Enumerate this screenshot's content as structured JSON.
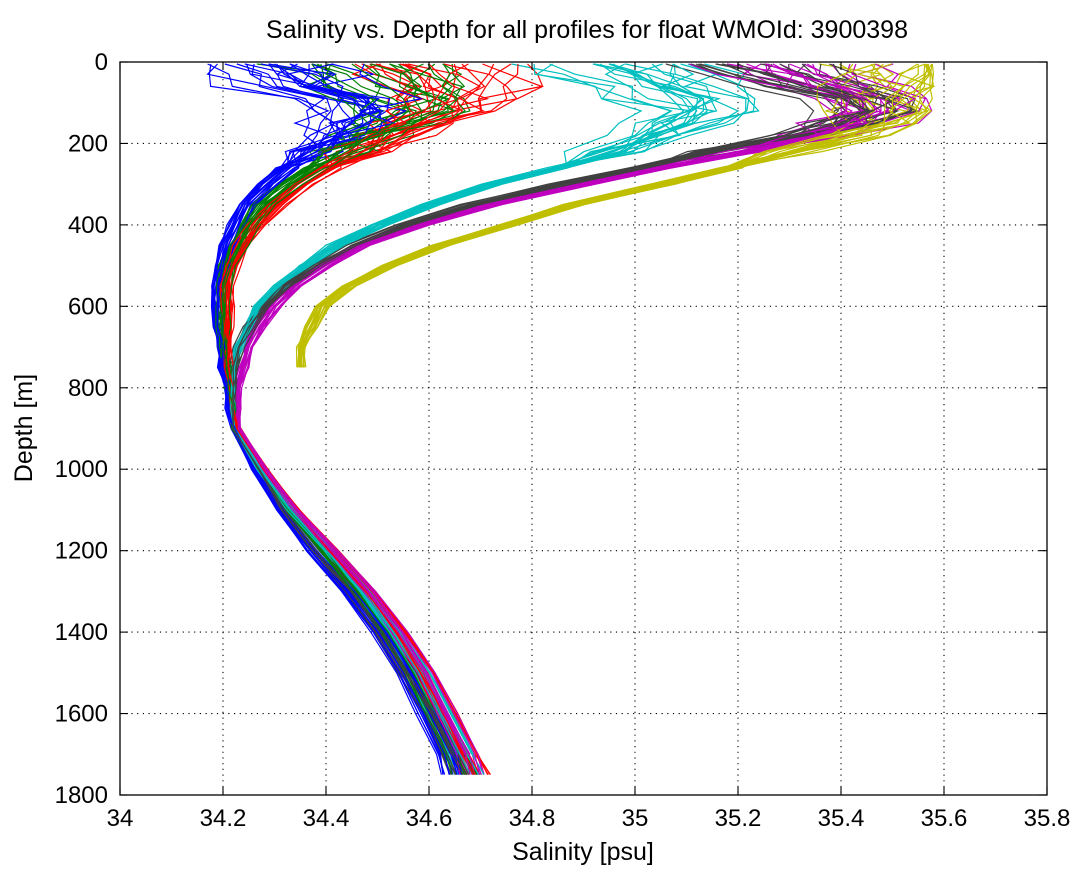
{
  "chart_data": {
    "type": "line",
    "title": "Salinity vs. Depth for all profiles for float WMOId: 3900398",
    "xlabel": "Salinity [psu]",
    "ylabel": "Depth [m]",
    "xlim": [
      34,
      35.8
    ],
    "ylim": [
      0,
      1800
    ],
    "y_reversed": true,
    "grid": true,
    "grid_style": "dotted",
    "xticks": [
      34,
      34.2,
      34.4,
      34.6,
      34.8,
      35,
      35.2,
      35.4,
      35.6,
      35.8
    ],
    "xtick_labels": [
      "34",
      "34.2",
      "34.4",
      "34.6",
      "34.8",
      "35",
      "35.2",
      "35.4",
      "35.6",
      "35.8"
    ],
    "yticks": [
      0,
      200,
      400,
      600,
      800,
      1000,
      1200,
      1400,
      1600,
      1800
    ],
    "ytick_labels": [
      "0",
      "200",
      "400",
      "600",
      "800",
      "1000",
      "1200",
      "1400",
      "1600",
      "1800"
    ],
    "series_colors": [
      "#0000ff",
      "#008000",
      "#ff0000",
      "#00bfbf",
      "#bf00bf",
      "#bfbf00",
      "#404040"
    ],
    "profile_count": 140,
    "depth_levels": [
      5,
      30,
      60,
      90,
      120,
      150,
      180,
      220,
      260,
      300,
      350,
      400,
      450,
      500,
      550,
      600,
      650,
      700,
      750,
      800,
      850,
      900,
      1000,
      1100,
      1200,
      1300,
      1400,
      1500,
      1600,
      1700,
      1750
    ],
    "series": [
      {
        "salinity": [
          34.3,
          34.33,
          34.36,
          34.45,
          34.47,
          34.45,
          34.42,
          34.38,
          34.33,
          34.29,
          34.25,
          34.23,
          34.21,
          34.2,
          34.19,
          34.19,
          34.19,
          34.2,
          34.2,
          34.21,
          34.21,
          34.22,
          34.26,
          34.31,
          34.37,
          34.44,
          34.5,
          34.55,
          34.59,
          34.63,
          34.64
        ]
      },
      {
        "salinity": [
          34.45,
          34.48,
          34.52,
          34.55,
          34.56,
          34.53,
          34.49,
          34.44,
          34.38,
          34.33,
          34.28,
          34.25,
          34.23,
          34.21,
          34.2,
          34.2,
          34.2,
          34.2,
          34.21,
          34.21,
          34.22,
          34.22,
          34.27,
          34.33,
          34.4,
          34.46,
          34.52,
          34.57,
          34.61,
          34.65,
          34.67
        ]
      },
      {
        "salinity": [
          34.6,
          34.62,
          34.65,
          34.64,
          34.62,
          34.58,
          34.53,
          34.47,
          34.41,
          34.36,
          34.31,
          34.27,
          34.24,
          34.22,
          34.21,
          34.21,
          34.21,
          34.21,
          34.21,
          34.22,
          34.22,
          34.23,
          34.28,
          34.34,
          34.41,
          34.48,
          34.54,
          34.59,
          34.63,
          34.67,
          34.69
        ]
      },
      {
        "salinity": [
          34.95,
          35.0,
          35.05,
          35.1,
          35.12,
          35.1,
          35.05,
          34.95,
          34.85,
          34.72,
          34.6,
          34.5,
          34.42,
          34.36,
          34.31,
          34.27,
          34.25,
          34.23,
          34.22,
          34.22,
          34.22,
          34.22,
          34.27,
          34.33,
          34.4,
          34.47,
          34.53,
          34.58,
          34.62,
          34.66,
          34.68
        ]
      },
      {
        "salinity": [
          35.3,
          35.35,
          35.4,
          35.45,
          35.47,
          35.43,
          35.35,
          35.22,
          35.05,
          34.9,
          34.72,
          34.58,
          34.47,
          34.4,
          34.34,
          34.3,
          34.27,
          34.25,
          34.24,
          34.23,
          34.23,
          34.23,
          34.28,
          34.34,
          34.41,
          34.48,
          34.54,
          34.59,
          34.63,
          34.67,
          34.68
        ]
      },
      {
        "salinity": [
          35.55,
          35.55,
          35.52,
          35.5,
          35.5,
          35.48,
          35.42,
          35.3,
          35.18,
          35.05,
          34.88,
          34.75,
          34.62,
          34.52,
          34.44,
          34.39,
          34.37,
          34.35,
          34.35,
          null,
          null,
          null,
          null,
          null,
          null,
          null,
          null,
          null,
          null,
          null,
          null
        ]
      },
      {
        "salinity": [
          35.2,
          35.25,
          35.33,
          35.42,
          35.45,
          35.4,
          35.3,
          35.15,
          35.0,
          34.85,
          34.68,
          34.55,
          34.45,
          34.38,
          34.32,
          34.28,
          34.25,
          34.23,
          34.22,
          34.22,
          34.22,
          34.22,
          34.27,
          34.32,
          34.38,
          34.45,
          34.51,
          34.56,
          34.61,
          34.65,
          34.67
        ]
      }
    ]
  }
}
